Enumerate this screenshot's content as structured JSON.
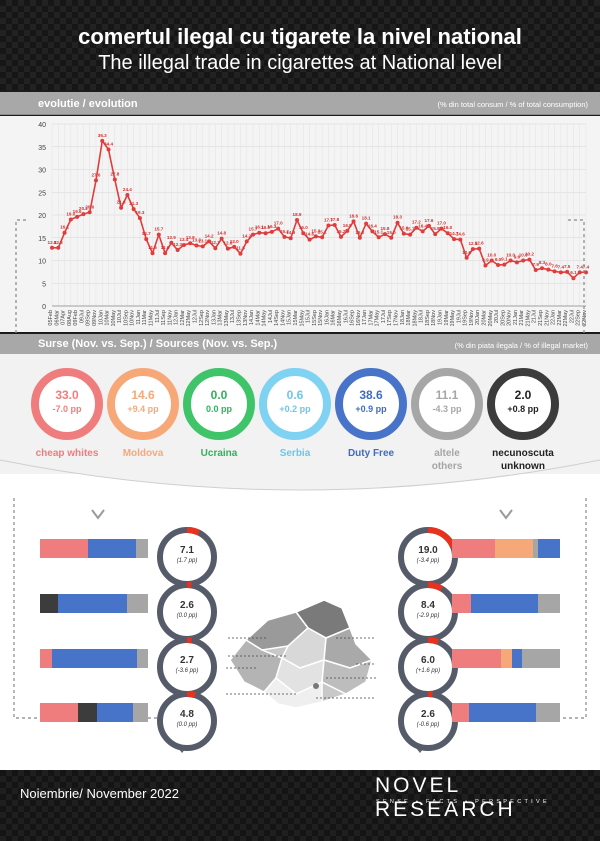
{
  "header": {
    "title_ro": "comertul ilegal cu tigarete la nivel national",
    "title_en": "The illegal trade in cigarettes at National level"
  },
  "evolution": {
    "label": "evolutie / evolution",
    "unit_note": "(% din total consum / % of total consumption)"
  },
  "chart_data": {
    "type": "line",
    "title": "evolutie / evolution",
    "ylabel": "(% din total consum / % of total consumption)",
    "ylim": [
      0,
      40
    ],
    "yticks": [
      0,
      5,
      10,
      15,
      20,
      25,
      30,
      35,
      40
    ],
    "grid": true,
    "color": "#e03c3c",
    "x": [
      "05Feb",
      "06Mar",
      "07Apr",
      "08Aug",
      "09Feb",
      "09Jul",
      "09Sep",
      "09Nov",
      "10Jan",
      "10Mar",
      "10May",
      "10Jul",
      "10Sep",
      "10Nov",
      "11Jan",
      "11Mar",
      "11May",
      "11Jul",
      "11Sep",
      "11Nov",
      "12Jan",
      "12Mar",
      "12May",
      "12Jul",
      "12Sep",
      "12Nov",
      "13Jan",
      "13Mar",
      "13May",
      "13Jul",
      "13Sep",
      "13Nov",
      "14Jan",
      "14Mar",
      "14May",
      "14Jul",
      "14Sep",
      "14Nov",
      "15Jan",
      "15Mar",
      "15May",
      "15Jul",
      "15Sep",
      "15Nov",
      "16Jan",
      "16Mar",
      "16May",
      "16Jul",
      "16Sep",
      "16Nov",
      "17Jan",
      "17Mar",
      "17May",
      "17Jul",
      "17Sep",
      "17Nov",
      "18Jan",
      "18Mar",
      "18May",
      "18Jul",
      "18Sep",
      "18Nov",
      "19Jan",
      "19Mar",
      "19May",
      "19Jul",
      "19Sep",
      "19Nov",
      "20Jan",
      "20Mar",
      "20May",
      "20Jul",
      "20Sep",
      "20Nov",
      "21Jan",
      "21Mar",
      "21May",
      "21Jul",
      "21Sep",
      "21Nov",
      "22Jan",
      "22Mar",
      "22May",
      "22Jul",
      "22Sep",
      "22Nov"
    ],
    "values": [
      12.8,
      12.8,
      16.1,
      19.0,
      19.6,
      20.2,
      20.6,
      27.6,
      36.3,
      34.4,
      27.8,
      21.6,
      24.4,
      21.3,
      19.3,
      14.7,
      11.6,
      15.7,
      11.6,
      13.9,
      12.3,
      13.4,
      13.8,
      13.3,
      13.1,
      14.2,
      12.7,
      14.8,
      12.6,
      13.0,
      11.5,
      14.2,
      15.7,
      16.1,
      16.0,
      16.3,
      17.0,
      15.2,
      14.9,
      18.9,
      16.0,
      14.6,
      15.3,
      15.1,
      17.7,
      17.8,
      15.2,
      16.5,
      18.6,
      15.0,
      18.1,
      16.4,
      15.1,
      15.8,
      15.0,
      18.3,
      15.9,
      15.7,
      17.2,
      16.4,
      17.6,
      15.8,
      17.0,
      16.0,
      14.7,
      14.6,
      10.6,
      12.5,
      12.6,
      8.9,
      10.0,
      9.0,
      9.1,
      10.0,
      9.6,
      10.0,
      10.2,
      7.9,
      8.3,
      8.0,
      7.6,
      7.4,
      7.5,
      6.1,
      7.4,
      7.4
    ],
    "labels": [
      "12.8",
      "12.8",
      "16.1",
      "19.0",
      "19.6",
      "20.2",
      "20.6",
      "27.6",
      "36.3",
      "34.4",
      "27.8",
      "21.6",
      "24.4",
      "21.3",
      "19.3",
      "14.7",
      "11.6",
      "15.7",
      "11.6",
      "13.9",
      "12.3",
      "13.4",
      "13.8",
      "13.3",
      "13.1",
      "14.2",
      "12.7",
      "14.8",
      "12.6",
      "13.0",
      "11.5",
      "14.2",
      "15.7",
      "16.1",
      "16.0",
      "16.3",
      "17.0",
      "15.2",
      "14.9",
      "18.9",
      "16.0",
      "14.6",
      "15.3",
      "15.1",
      "17.7",
      "17.8",
      "15.2",
      "16.5",
      "18.6",
      "15.0",
      "18.1",
      "16.4",
      "15.1",
      "15.8",
      "15.0",
      "18.3",
      "15.9",
      "15.7",
      "17.2",
      "16.4",
      "17.6",
      "15.8",
      "17.0",
      "16.0",
      "14.7",
      "14.6",
      "10.6",
      "12.5",
      "12.6",
      "8.9",
      "10.0",
      "9.0",
      "9.1",
      "10.0",
      "9.6",
      "10.0",
      "10.2",
      "7.9",
      "8.3",
      "8.0",
      "7.6",
      "7.4",
      "7.5",
      "6.1",
      "7.4",
      "7.4"
    ]
  },
  "sources": {
    "label": "Surse (Nov. vs. Sep.) / Sources (Nov. vs. Sep.)",
    "unit_note": "(% din piata ilegala / % of illegal market)",
    "items": [
      {
        "value": "33.0",
        "delta": "-7.0 pp",
        "name": "cheap whites",
        "name2": "",
        "color": "#f07d7d",
        "text": "#f07d7d"
      },
      {
        "value": "14.6",
        "delta": "+9.4 pp",
        "name": "Moldova",
        "name2": "",
        "color": "#f6a878",
        "text": "#f6a878"
      },
      {
        "value": "0.0",
        "delta": "0.0 pp",
        "name": "Ucraina",
        "name2": "",
        "color": "#3fc46a",
        "text": "#2fb25a"
      },
      {
        "value": "0.6",
        "delta": "+0.2 pp",
        "name": "Serbia",
        "name2": "",
        "color": "#7fd2f2",
        "text": "#6cc6ea"
      },
      {
        "value": "38.6",
        "delta": "+0.9 pp",
        "name": "Duty Free",
        "name2": "",
        "color": "#4774c8",
        "text": "#3f6cc2"
      },
      {
        "value": "11.1",
        "delta": "-4.3 pp",
        "name": "altele",
        "name2": "others",
        "color": "#a6a6a6",
        "text": "#a6a6a6"
      },
      {
        "value": "2.0",
        "delta": "+0.8 pp",
        "name": "necunoscuta",
        "name2": "unknown",
        "color": "#3c3c3c",
        "text": "#222222"
      }
    ]
  },
  "regions": {
    "left": [
      {
        "value": "7.1",
        "delta": "(1.7 pp)",
        "share": 0.071
      },
      {
        "value": "2.6",
        "delta": "(0.0 pp)",
        "share": 0.026
      },
      {
        "value": "2.7",
        "delta": "(-3.6 pp)",
        "share": 0.027
      },
      {
        "value": "4.8",
        "delta": "(0.0 pp)",
        "share": 0.048
      }
    ],
    "right": [
      {
        "value": "19.0",
        "delta": "(-3.4 pp)",
        "share": 0.19
      },
      {
        "value": "8.4",
        "delta": "(-2.9 pp)",
        "share": 0.084
      },
      {
        "value": "6.0",
        "delta": "(+1.6 pp)",
        "share": 0.06
      },
      {
        "value": "2.6",
        "delta": "(-0.6 pp)",
        "share": 0.026
      }
    ],
    "bars_left": [
      [
        {
          "c": "#f07d7d",
          "w": 0.44
        },
        {
          "c": "#4774c8",
          "w": 0.45
        },
        {
          "c": "#a6a6a6",
          "w": 0.11
        }
      ],
      [
        {
          "c": "#3c3c3c",
          "w": 0.17
        },
        {
          "c": "#4774c8",
          "w": 0.64
        },
        {
          "c": "#a6a6a6",
          "w": 0.19
        }
      ],
      [
        {
          "c": "#f07d7d",
          "w": 0.11
        },
        {
          "c": "#4774c8",
          "w": 0.79
        },
        {
          "c": "#a6a6a6",
          "w": 0.1
        }
      ],
      [
        {
          "c": "#f07d7d",
          "w": 0.35
        },
        {
          "c": "#3c3c3c",
          "w": 0.18
        },
        {
          "c": "#4774c8",
          "w": 0.33
        },
        {
          "c": "#a6a6a6",
          "w": 0.14
        }
      ]
    ],
    "bars_right": [
      [
        {
          "c": "#f07d7d",
          "w": 0.4
        },
        {
          "c": "#f6a878",
          "w": 0.35
        },
        {
          "c": "#a6a6a6",
          "w": 0.05
        },
        {
          "c": "#4774c8",
          "w": 0.2
        }
      ],
      [
        {
          "c": "#f07d7d",
          "w": 0.18
        },
        {
          "c": "#4774c8",
          "w": 0.62
        },
        {
          "c": "#a6a6a6",
          "w": 0.2
        }
      ],
      [
        {
          "c": "#f07d7d",
          "w": 0.45
        },
        {
          "c": "#f6a878",
          "w": 0.11
        },
        {
          "c": "#4774c8",
          "w": 0.09
        },
        {
          "c": "#a6a6a6",
          "w": 0.35
        }
      ],
      [
        {
          "c": "#f07d7d",
          "w": 0.16
        },
        {
          "c": "#4774c8",
          "w": 0.62
        },
        {
          "c": "#a6a6a6",
          "w": 0.22
        }
      ]
    ]
  },
  "footer": {
    "date": "Noiembrie/ November 2022",
    "brand": "NOVEL RESEARCH",
    "tagline": "SENSE • FACTS • PERSPECTIVE"
  }
}
